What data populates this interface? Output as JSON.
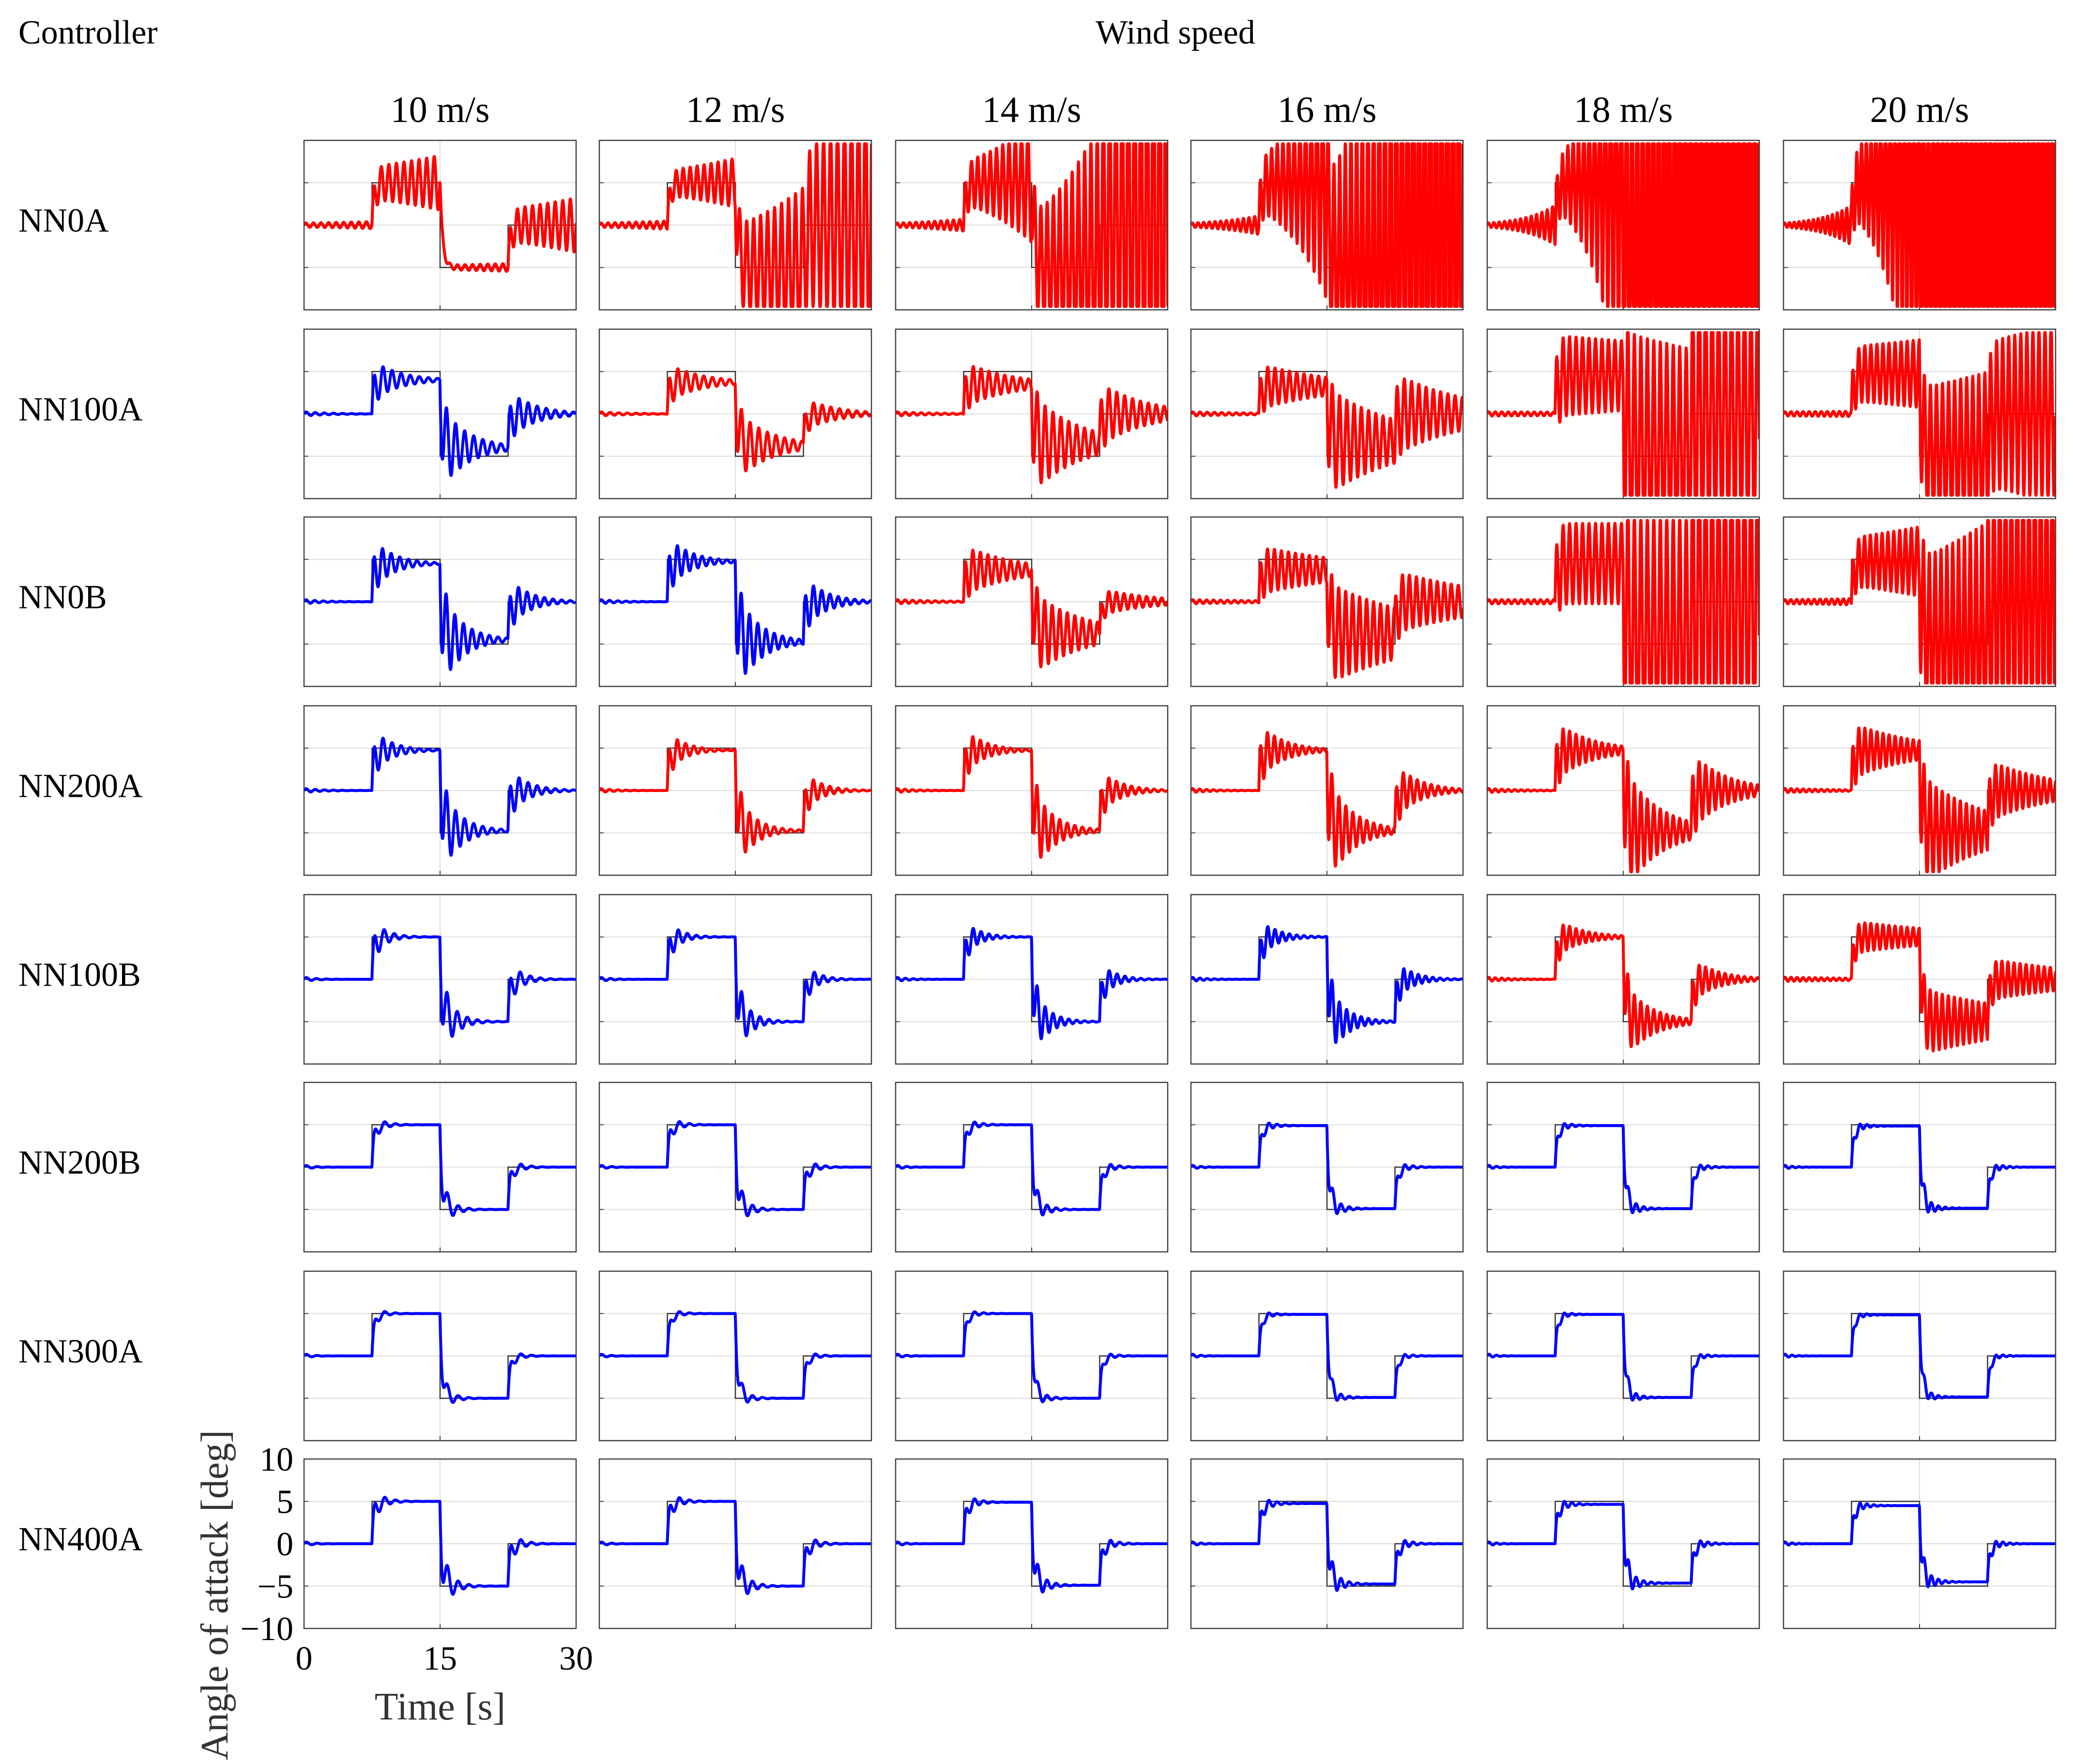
{
  "figure": {
    "controller_header": "Controller",
    "wind_header": "Wind speed",
    "colors": {
      "unstable": "#ff0000",
      "stable": "#0000ff",
      "reference": "#333333",
      "grid": "#dddddd",
      "frame": "#404040"
    }
  },
  "chart_data": {
    "type": "line",
    "title": "",
    "xlabel": "Time [s]",
    "ylabel": "Angle of attack [deg]",
    "xlim": [
      0,
      30
    ],
    "ylim": [
      -10,
      10
    ],
    "xticks": [
      0,
      15,
      30
    ],
    "yticks": [
      10,
      5,
      0,
      -5,
      -10
    ],
    "x_tick_labels": [
      "0",
      "15",
      "30"
    ],
    "y_tick_labels": [
      "10",
      "5",
      "0",
      "−5",
      "−10"
    ],
    "grid": true,
    "legend": "none",
    "reference": {
      "name": "Reference step input",
      "x": [
        0,
        7.5,
        7.5,
        15,
        15,
        22.5,
        22.5,
        30
      ],
      "y": [
        0,
        0,
        5,
        5,
        -5,
        -5,
        0,
        0
      ]
    },
    "columns": [
      "10 m/s",
      "12 m/s",
      "14 m/s",
      "16 m/s",
      "18 m/s",
      "20 m/s"
    ],
    "rows": [
      "NN0A",
      "NN100A",
      "NN0B",
      "NN200A",
      "NN100B",
      "NN200B",
      "NN300A",
      "NN400A"
    ],
    "response_color": [
      [
        "red",
        "red",
        "red",
        "red",
        "red",
        "red"
      ],
      [
        "blue",
        "red",
        "red",
        "red",
        "red",
        "red"
      ],
      [
        "blue",
        "blue",
        "red",
        "red",
        "red",
        "red"
      ],
      [
        "blue",
        "red",
        "red",
        "red",
        "red",
        "red"
      ],
      [
        "blue",
        "blue",
        "blue",
        "blue",
        "red",
        "red"
      ],
      [
        "blue",
        "blue",
        "blue",
        "blue",
        "blue",
        "blue"
      ],
      [
        "blue",
        "blue",
        "blue",
        "blue",
        "blue",
        "blue"
      ],
      [
        "blue",
        "blue",
        "blue",
        "blue",
        "blue",
        "blue"
      ]
    ],
    "response_params": [
      [
        {
          "damping": -0.07,
          "amp": 1.2,
          "freq": 1.2,
          "limit_cycle": 15,
          "tracking": 1.0
        },
        {
          "damping": -0.09,
          "amp": 1.2,
          "freq": 1.3,
          "limit_cycle": 15,
          "tracking": 1.0
        },
        {
          "damping": -0.14,
          "amp": 1.6,
          "freq": 1.45,
          "limit_cycle": 15,
          "tracking": 1.0
        },
        {
          "damping": -0.2,
          "amp": 1.6,
          "freq": 1.6,
          "limit_cycle": 15,
          "tracking": 1.0
        },
        {
          "damping": -0.3,
          "amp": 1.8,
          "freq": 1.7,
          "limit_cycle": 15,
          "tracking": 1.0
        },
        {
          "damping": -0.3,
          "amp": 1.8,
          "freq": 1.9,
          "limit_cycle": 15,
          "tracking": 1.0
        }
      ],
      [
        {
          "damping": 0.35,
          "amp": 2.0,
          "freq": 1.0,
          "limit_cycle": 0,
          "tracking": 0.8
        },
        {
          "damping": 0.28,
          "amp": 1.8,
          "freq": 1.05,
          "limit_cycle": 0,
          "tracking": 0.75
        },
        {
          "damping": 0.2,
          "amp": 2.2,
          "freq": 1.15,
          "limit_cycle": 0,
          "tracking": 0.7
        },
        {
          "damping": 0.12,
          "amp": 2.2,
          "freq": 1.25,
          "limit_cycle": 0,
          "tracking": 0.65
        },
        {
          "damping": 0.02,
          "amp": 4.0,
          "freq": 1.4,
          "limit_cycle": 0,
          "tracking": 0.9
        },
        {
          "damping": -0.03,
          "amp": 2.5,
          "freq": 1.5,
          "limit_cycle": 10,
          "tracking": 0.95
        }
      ],
      [
        {
          "damping": 0.45,
          "amp": 2.5,
          "freq": 1.05,
          "limit_cycle": 0,
          "tracking": 0.9
        },
        {
          "damping": 0.42,
          "amp": 2.5,
          "freq": 1.1,
          "limit_cycle": 0,
          "tracking": 0.95
        },
        {
          "damping": 0.18,
          "amp": 2.3,
          "freq": 1.2,
          "limit_cycle": 0,
          "tracking": 0.75
        },
        {
          "damping": 0.09,
          "amp": 2.3,
          "freq": 1.3,
          "limit_cycle": 0,
          "tracking": 0.75
        },
        {
          "damping": 0.0,
          "amp": 4.0,
          "freq": 1.4,
          "limit_cycle": 0,
          "tracking": 0.9
        },
        {
          "damping": -0.05,
          "amp": 2.5,
          "freq": 1.55,
          "limit_cycle": 10,
          "tracking": 0.95
        }
      ],
      [
        {
          "damping": 0.5,
          "amp": 2.2,
          "freq": 1.0,
          "limit_cycle": 0,
          "tracking": 0.95
        },
        {
          "damping": 0.55,
          "amp": 2.0,
          "freq": 1.1,
          "limit_cycle": 0,
          "tracking": 0.95
        },
        {
          "damping": 0.45,
          "amp": 2.2,
          "freq": 1.2,
          "limit_cycle": 0,
          "tracking": 0.95
        },
        {
          "damping": 0.38,
          "amp": 2.6,
          "freq": 1.3,
          "limit_cycle": 0,
          "tracking": 0.95
        },
        {
          "damping": 0.26,
          "amp": 2.8,
          "freq": 1.4,
          "limit_cycle": 0,
          "tracking": 0.95
        },
        {
          "damping": 0.14,
          "amp": 2.6,
          "freq": 1.5,
          "limit_cycle": 0,
          "tracking": 0.95
        }
      ],
      [
        {
          "damping": 0.75,
          "amp": 2.0,
          "freq": 0.9,
          "limit_cycle": 0,
          "tracking": 1.0
        },
        {
          "damping": 0.75,
          "amp": 1.8,
          "freq": 1.0,
          "limit_cycle": 0,
          "tracking": 1.0
        },
        {
          "damping": 0.65,
          "amp": 1.8,
          "freq": 1.15,
          "limit_cycle": 0,
          "tracking": 1.0
        },
        {
          "damping": 0.55,
          "amp": 1.9,
          "freq": 1.25,
          "limit_cycle": 0,
          "tracking": 1.0
        },
        {
          "damping": 0.35,
          "amp": 1.8,
          "freq": 1.4,
          "limit_cycle": 0,
          "tracking": 1.0
        },
        {
          "damping": 0.08,
          "amp": 1.5,
          "freq": 1.5,
          "limit_cycle": 0,
          "tracking": 1.0
        }
      ],
      [
        {
          "damping": 0.95,
          "amp": 1.2,
          "freq": 0.85,
          "limit_cycle": 0,
          "tracking": 1.0
        },
        {
          "damping": 0.95,
          "amp": 1.2,
          "freq": 0.9,
          "limit_cycle": 0,
          "tracking": 1.0
        },
        {
          "damping": 0.95,
          "amp": 1.0,
          "freq": 1.0,
          "limit_cycle": 0,
          "tracking": 1.0
        },
        {
          "damping": 0.95,
          "amp": 0.9,
          "freq": 1.1,
          "limit_cycle": 0,
          "tracking": 0.98
        },
        {
          "damping": 0.95,
          "amp": 0.8,
          "freq": 1.2,
          "limit_cycle": 0,
          "tracking": 0.98
        },
        {
          "damping": 0.95,
          "amp": 0.8,
          "freq": 1.3,
          "limit_cycle": 0,
          "tracking": 0.97
        }
      ],
      [
        {
          "damping": 1.05,
          "amp": 1.0,
          "freq": 0.85,
          "limit_cycle": 0,
          "tracking": 1.0
        },
        {
          "damping": 1.05,
          "amp": 0.9,
          "freq": 0.9,
          "limit_cycle": 0,
          "tracking": 1.0
        },
        {
          "damping": 1.05,
          "amp": 0.8,
          "freq": 1.0,
          "limit_cycle": 0,
          "tracking": 1.0
        },
        {
          "damping": 1.05,
          "amp": 0.7,
          "freq": 1.1,
          "limit_cycle": 0,
          "tracking": 0.98
        },
        {
          "damping": 1.05,
          "amp": 0.7,
          "freq": 1.2,
          "limit_cycle": 0,
          "tracking": 0.98
        },
        {
          "damping": 1.05,
          "amp": 0.6,
          "freq": 1.3,
          "limit_cycle": 0,
          "tracking": 0.97
        }
      ],
      [
        {
          "damping": 0.95,
          "amp": 1.6,
          "freq": 0.85,
          "limit_cycle": 0,
          "tracking": 1.0
        },
        {
          "damping": 0.95,
          "amp": 1.4,
          "freq": 0.9,
          "limit_cycle": 0,
          "tracking": 1.0
        },
        {
          "damping": 0.95,
          "amp": 1.2,
          "freq": 1.0,
          "limit_cycle": 0,
          "tracking": 0.98
        },
        {
          "damping": 0.95,
          "amp": 1.1,
          "freq": 1.1,
          "limit_cycle": 0,
          "tracking": 0.95
        },
        {
          "damping": 0.95,
          "amp": 1.0,
          "freq": 1.2,
          "limit_cycle": 0,
          "tracking": 0.93
        },
        {
          "damping": 0.95,
          "amp": 0.9,
          "freq": 1.3,
          "limit_cycle": 0,
          "tracking": 0.9
        }
      ]
    ]
  }
}
